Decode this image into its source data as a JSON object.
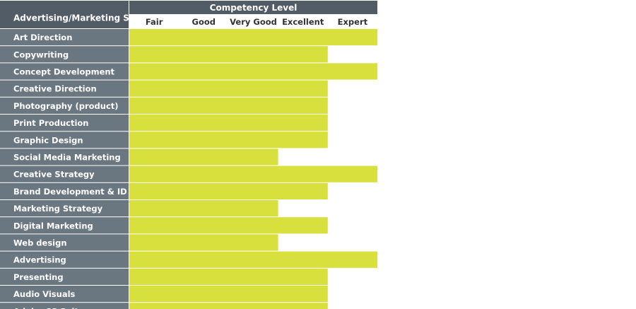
{
  "chart_data": {
    "type": "bar",
    "orientation": "horizontal",
    "title": "Competency Level",
    "row_header": "Advertising/Marketing Skills",
    "levels": [
      "Fair",
      "Good",
      "Very Good",
      "Excellent",
      "Expert"
    ],
    "categories": [
      "Art Direction",
      "Copywriting",
      "Concept Development",
      "Creative Direction",
      "Photography (product)",
      "Print Production",
      "Graphic Design",
      "Social Media Marketing",
      "Creative Strategy",
      "Brand Development & ID",
      "Marketing Strategy",
      "Digital Marketing",
      "Web design",
      "Advertising",
      "Presenting",
      "Audio Visuals",
      "Adobe CS Suite"
    ],
    "values": [
      5,
      4,
      5,
      4,
      4,
      4,
      4,
      3,
      5,
      4,
      3,
      4,
      3,
      5,
      4,
      4,
      4
    ],
    "xlim": [
      0,
      5
    ],
    "grid": false,
    "legend": "none"
  },
  "colors": {
    "header_bg": "#515c66",
    "row_label_bg": "#6b7780",
    "bar": "#d8e03e",
    "separator": "#ffffff"
  }
}
